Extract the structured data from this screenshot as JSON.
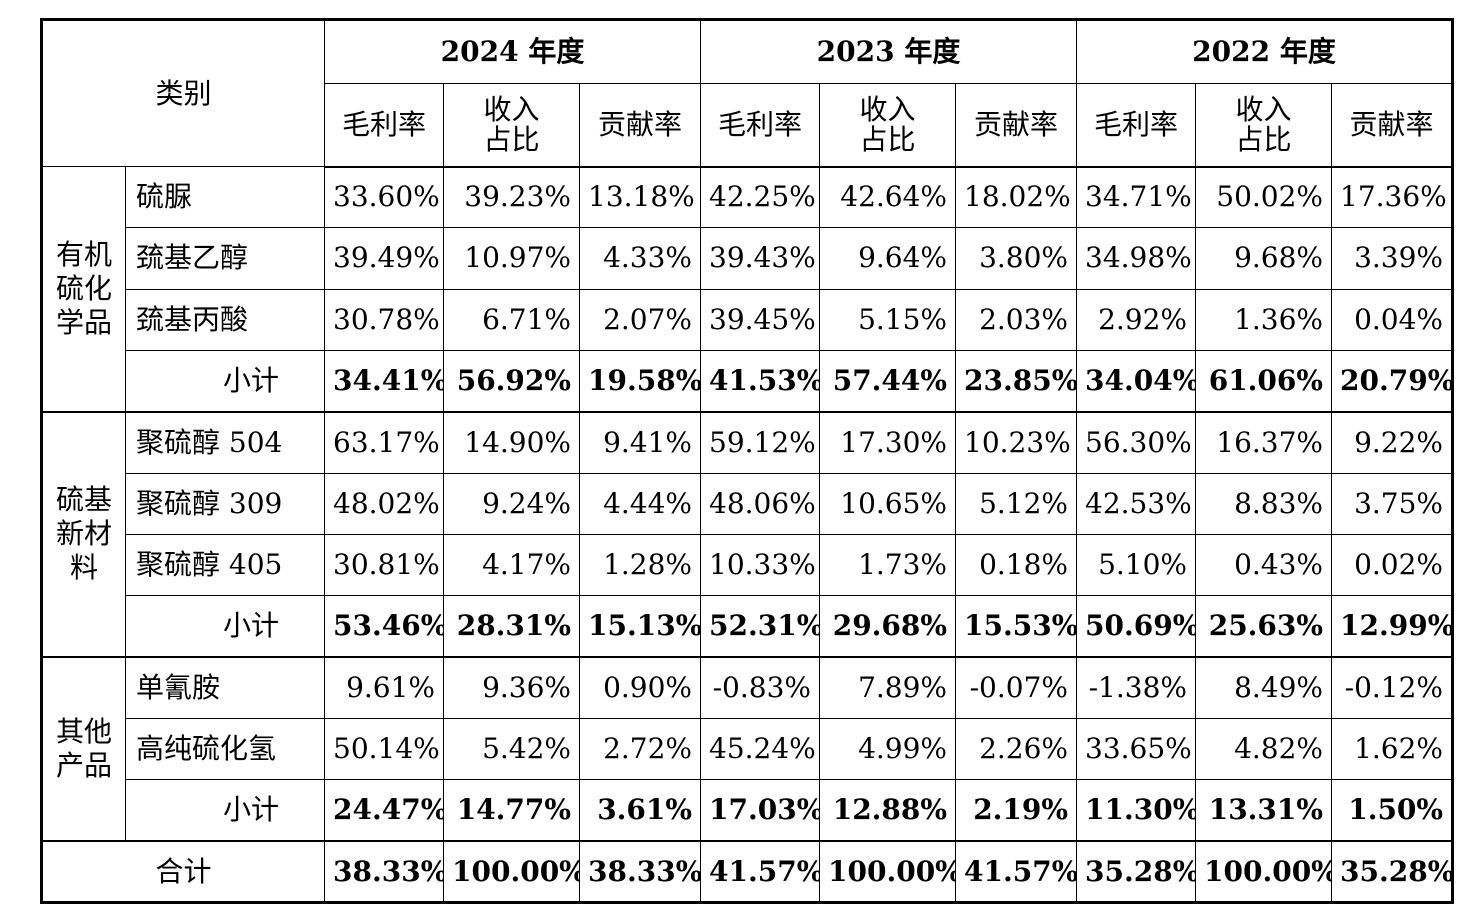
{
  "header": {
    "category_label": "类别",
    "years": [
      "2024 年度",
      "2023 年度",
      "2022 年度"
    ],
    "metrics": [
      "毛利率",
      "收入占比",
      "贡献率"
    ],
    "metric_lines": [
      [
        "毛利率"
      ],
      [
        "收入",
        "占比"
      ],
      [
        "贡献率"
      ]
    ]
  },
  "groups": [
    {
      "name": "有机硫化学品",
      "name_lines": [
        "有机",
        "硫化",
        "学品"
      ],
      "rows": [
        {
          "product": "硫脲",
          "values": [
            "33.60%",
            "39.23%",
            "13.18%",
            "42.25%",
            "42.64%",
            "18.02%",
            "34.71%",
            "50.02%",
            "17.36%"
          ]
        },
        {
          "product": "巯基乙醇",
          "values": [
            "39.49%",
            "10.97%",
            "4.33%",
            "39.43%",
            "9.64%",
            "3.80%",
            "34.98%",
            "9.68%",
            "3.39%"
          ]
        },
        {
          "product": "巯基丙酸",
          "values": [
            "30.78%",
            "6.71%",
            "2.07%",
            "39.45%",
            "5.15%",
            "2.03%",
            "2.92%",
            "1.36%",
            "0.04%"
          ]
        }
      ],
      "subtotal": {
        "label": "小计",
        "values": [
          "34.41%",
          "56.92%",
          "19.58%",
          "41.53%",
          "57.44%",
          "23.85%",
          "34.04%",
          "61.06%",
          "20.79%"
        ]
      }
    },
    {
      "name": "硫基新材料",
      "name_lines": [
        "硫基",
        "新材",
        "料"
      ],
      "rows": [
        {
          "product": "聚硫醇 504",
          "values": [
            "63.17%",
            "14.90%",
            "9.41%",
            "59.12%",
            "17.30%",
            "10.23%",
            "56.30%",
            "16.37%",
            "9.22%"
          ]
        },
        {
          "product": "聚硫醇 309",
          "values": [
            "48.02%",
            "9.24%",
            "4.44%",
            "48.06%",
            "10.65%",
            "5.12%",
            "42.53%",
            "8.83%",
            "3.75%"
          ]
        },
        {
          "product": "聚硫醇 405",
          "values": [
            "30.81%",
            "4.17%",
            "1.28%",
            "10.33%",
            "1.73%",
            "0.18%",
            "5.10%",
            "0.43%",
            "0.02%"
          ]
        }
      ],
      "subtotal": {
        "label": "小计",
        "values": [
          "53.46%",
          "28.31%",
          "15.13%",
          "52.31%",
          "29.68%",
          "15.53%",
          "50.69%",
          "25.63%",
          "12.99%"
        ]
      }
    },
    {
      "name": "其他产品",
      "name_lines": [
        "其他",
        "产品"
      ],
      "rows": [
        {
          "product": "单氰胺",
          "values": [
            "9.61%",
            "9.36%",
            "0.90%",
            "-0.83%",
            "7.89%",
            "-0.07%",
            "-1.38%",
            "8.49%",
            "-0.12%"
          ]
        },
        {
          "product": "高纯硫化氢",
          "values": [
            "50.14%",
            "5.42%",
            "2.72%",
            "45.24%",
            "4.99%",
            "2.26%",
            "33.65%",
            "4.82%",
            "1.62%"
          ]
        }
      ],
      "subtotal": {
        "label": "小计",
        "values": [
          "24.47%",
          "14.77%",
          "3.61%",
          "17.03%",
          "12.88%",
          "2.19%",
          "11.30%",
          "13.31%",
          "1.50%"
        ]
      }
    }
  ],
  "total": {
    "label": "合计",
    "values": [
      "38.33%",
      "100.00%",
      "38.33%",
      "41.57%",
      "100.00%",
      "41.57%",
      "35.28%",
      "100.00%",
      "35.28%"
    ]
  }
}
